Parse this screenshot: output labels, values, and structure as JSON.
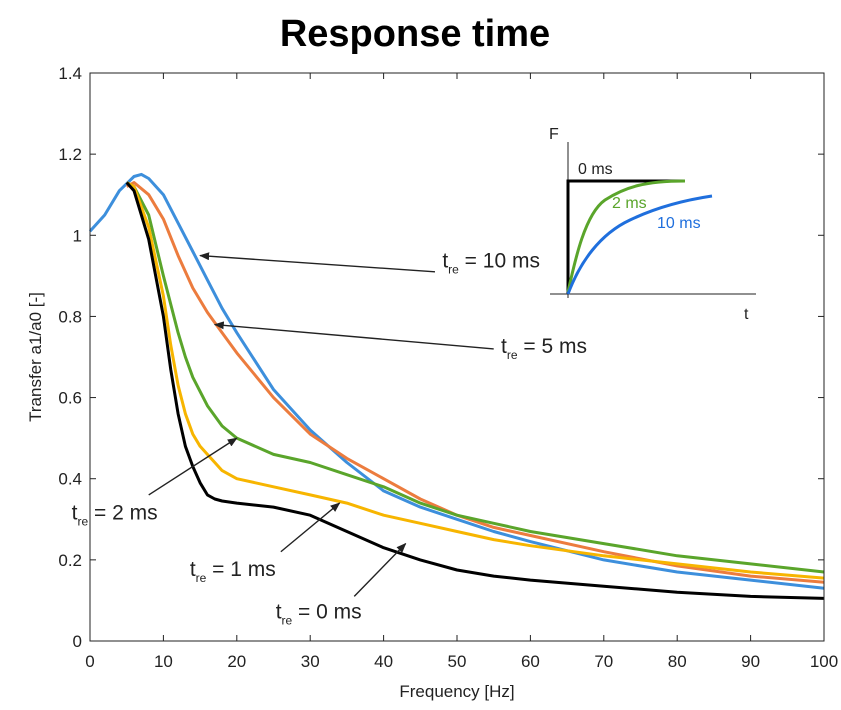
{
  "chart_data": {
    "type": "line",
    "title": "Response time",
    "xlabel": "Frequency [Hz]",
    "ylabel": "Transfer a1/a0 [-]",
    "xlim": [
      0,
      100
    ],
    "ylim": [
      0,
      1.4
    ],
    "xticks": [
      0,
      10,
      20,
      30,
      40,
      50,
      60,
      70,
      80,
      90,
      100
    ],
    "yticks": [
      0,
      0.2,
      0.4,
      0.6,
      0.8,
      1,
      1.2,
      1.4
    ],
    "xtick_labels": [
      "0",
      "10",
      "20",
      "30",
      "40",
      "50",
      "60",
      "70",
      "80",
      "90",
      "100"
    ],
    "ytick_labels": [
      "0",
      "0.2",
      "0.4",
      "0.6",
      "0.8",
      "1",
      "1.2",
      "1.4"
    ],
    "grid": false,
    "series": [
      {
        "name": "t_re = 10 ms",
        "color": "#3d8fdc",
        "x": [
          0,
          2,
          4,
          6,
          7,
          8,
          10,
          12,
          14,
          16,
          18,
          20,
          25,
          30,
          35,
          40,
          45,
          50,
          55,
          60,
          70,
          80,
          90,
          100
        ],
        "y": [
          1.01,
          1.05,
          1.11,
          1.145,
          1.15,
          1.14,
          1.1,
          1.03,
          0.96,
          0.89,
          0.82,
          0.76,
          0.62,
          0.52,
          0.44,
          0.37,
          0.33,
          0.3,
          0.27,
          0.245,
          0.2,
          0.17,
          0.15,
          0.13
        ]
      },
      {
        "name": "t_re = 5 ms",
        "color": "#ec7c3e",
        "x": [
          5,
          6,
          8,
          10,
          12,
          14,
          16,
          18,
          20,
          25,
          30,
          35,
          40,
          45,
          50,
          55,
          60,
          70,
          80,
          90,
          100
        ],
        "y": [
          1.12,
          1.13,
          1.1,
          1.04,
          0.95,
          0.87,
          0.81,
          0.76,
          0.71,
          0.6,
          0.51,
          0.45,
          0.4,
          0.35,
          0.31,
          0.28,
          0.26,
          0.22,
          0.185,
          0.16,
          0.145
        ]
      },
      {
        "name": "t_re = 2 ms",
        "color": "#5aa52b",
        "x": [
          5,
          6,
          8,
          10,
          12,
          13,
          14,
          16,
          18,
          20,
          25,
          30,
          35,
          40,
          45,
          50,
          55,
          60,
          70,
          80,
          90,
          100
        ],
        "y": [
          1.13,
          1.12,
          1.05,
          0.9,
          0.76,
          0.7,
          0.65,
          0.58,
          0.53,
          0.5,
          0.46,
          0.44,
          0.41,
          0.38,
          0.34,
          0.31,
          0.29,
          0.27,
          0.24,
          0.21,
          0.19,
          0.17
        ]
      },
      {
        "name": "t_re = 1 ms",
        "color": "#f7b500",
        "x": [
          5,
          6,
          8,
          10,
          11,
          12,
          13,
          14,
          15,
          16,
          17,
          18,
          20,
          25,
          30,
          35,
          40,
          45,
          50,
          55,
          60,
          70,
          80,
          90,
          100
        ],
        "y": [
          1.13,
          1.12,
          1.02,
          0.85,
          0.73,
          0.63,
          0.56,
          0.51,
          0.48,
          0.46,
          0.44,
          0.42,
          0.4,
          0.38,
          0.36,
          0.34,
          0.31,
          0.29,
          0.27,
          0.25,
          0.235,
          0.21,
          0.19,
          0.17,
          0.155
        ]
      },
      {
        "name": "t_re = 0 ms",
        "color": "#000000",
        "x": [
          5,
          6,
          8,
          10,
          11,
          12,
          13,
          14,
          15,
          16,
          17,
          18,
          20,
          25,
          30,
          35,
          40,
          45,
          50,
          55,
          60,
          70,
          80,
          90,
          100
        ],
        "y": [
          1.13,
          1.11,
          0.99,
          0.8,
          0.67,
          0.56,
          0.48,
          0.43,
          0.39,
          0.36,
          0.35,
          0.345,
          0.34,
          0.33,
          0.31,
          0.27,
          0.23,
          0.2,
          0.175,
          0.16,
          0.15,
          0.135,
          0.12,
          0.11,
          0.105
        ]
      }
    ],
    "annotations": [
      {
        "text": "t_re = 10 ms",
        "lead": "t",
        "sub": "re",
        "tail": " = 10 ms",
        "text_at": [
          48,
          0.92
        ],
        "arrow_from": [
          47,
          0.91
        ],
        "arrow_to": [
          15,
          0.95
        ]
      },
      {
        "text": "t_re = 5 ms",
        "lead": "t",
        "sub": "re",
        "tail": " = 5 ms",
        "text_at": [
          56,
          0.71
        ],
        "arrow_from": [
          55,
          0.72
        ],
        "arrow_to": [
          17,
          0.78
        ]
      },
      {
        "text": "t_re = 2 ms",
        "lead": "t",
        "sub": "re",
        "tail": " = 2 ms",
        "text_at": [
          -2.5,
          0.3
        ],
        "arrow_from": [
          8,
          0.36
        ],
        "arrow_to": [
          20,
          0.5
        ]
      },
      {
        "text": "t_re = 1 ms",
        "lead": "t",
        "sub": "re",
        "tail": " = 1 ms",
        "text_at": [
          13.6,
          0.16
        ],
        "arrow_from": [
          26,
          0.22
        ],
        "arrow_to": [
          34,
          0.34
        ]
      },
      {
        "text": "t_re = 0 ms",
        "lead": "t",
        "sub": "re",
        "tail": " = 0 ms",
        "text_at": [
          25.3,
          0.055
        ],
        "arrow_from": [
          36,
          0.11
        ],
        "arrow_to": [
          43,
          0.24
        ]
      }
    ],
    "inset": {
      "y_axis_label": "F",
      "x_axis_label": "t",
      "curves": [
        {
          "label": "0 ms",
          "color": "#000000"
        },
        {
          "label": "2 ms",
          "color": "#5aa52b"
        },
        {
          "label": "10 ms",
          "color": "#1f6fdd"
        }
      ]
    }
  }
}
